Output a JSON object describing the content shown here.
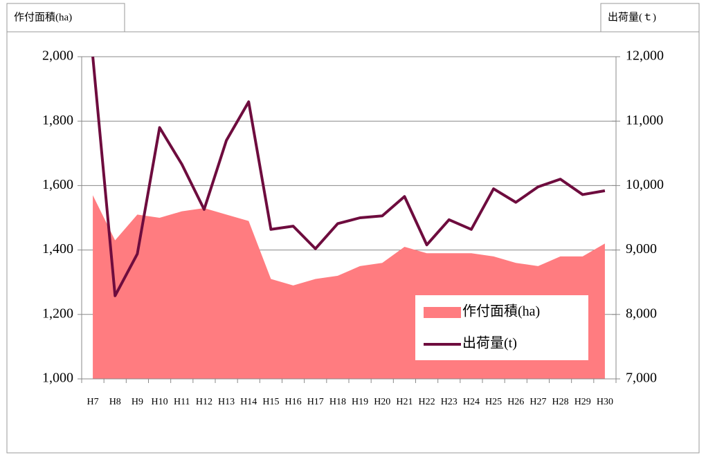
{
  "chart_data": {
    "type": "area_line",
    "y_label": "作付面積(ha)",
    "y2_label": "出荷量(ｔ)",
    "categories": [
      "H7",
      "H8",
      "H9",
      "H10",
      "H11",
      "H12",
      "H13",
      "H14",
      "H15",
      "H16",
      "H17",
      "H18",
      "H19",
      "H20",
      "H21",
      "H22",
      "H23",
      "H24",
      "H25",
      "H26",
      "H27",
      "H28",
      "H29",
      "H30"
    ],
    "series": [
      {
        "name": "作付面積(ha)",
        "color": "#ff7c80",
        "kind": "area",
        "values": [
          1570,
          1430,
          1510,
          1500,
          1520,
          1530,
          1510,
          1490,
          1310,
          1290,
          1310,
          1320,
          1350,
          1360,
          1410,
          1390,
          1390,
          1390,
          1380,
          1360,
          1350,
          1380,
          1380,
          1420
        ]
      },
      {
        "name": "出荷量(t)",
        "color": "#6e0c3e",
        "kind": "line",
        "axis": "y2",
        "values": [
          12000,
          8290,
          8940,
          10900,
          10330,
          9630,
          10700,
          11300,
          9320,
          9370,
          9020,
          9410,
          9500,
          9530,
          9830,
          9080,
          9470,
          9320,
          9950,
          9740,
          9980,
          10100,
          9860,
          9920
        ]
      }
    ],
    "ylim": [
      1000,
      2000
    ],
    "yticks": [
      {
        "value": 1000,
        "label": "1,000"
      },
      {
        "value": 1200,
        "label": "1,200"
      },
      {
        "value": 1400,
        "label": "1,400"
      },
      {
        "value": 1600,
        "label": "1,600"
      },
      {
        "value": 1800,
        "label": "1,800"
      },
      {
        "value": 2000,
        "label": "2,000"
      }
    ],
    "y2lim": [
      7000,
      12000
    ],
    "y2ticks": [
      {
        "value": 7000,
        "label": "7,000"
      },
      {
        "value": 8000,
        "label": "8,000"
      },
      {
        "value": 9000,
        "label": "9,000"
      },
      {
        "value": 10000,
        "label": "10,000"
      },
      {
        "value": 11000,
        "label": "11,000"
      },
      {
        "value": 12000,
        "label": "12,000"
      }
    ],
    "grid": true
  }
}
